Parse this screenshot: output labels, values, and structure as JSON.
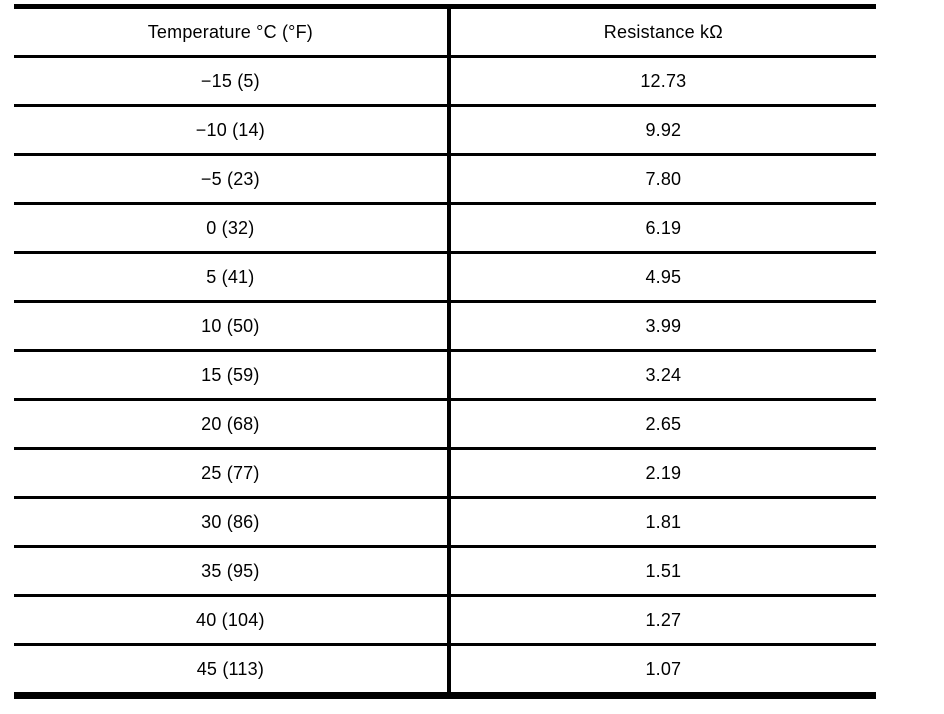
{
  "table": {
    "headers": [
      "Temperature °C (°F)",
      "Resistance kΩ"
    ],
    "rows": [
      [
        "−15 (5)",
        "12.73"
      ],
      [
        "−10 (14)",
        "9.92"
      ],
      [
        "−5 (23)",
        "7.80"
      ],
      [
        "0 (32)",
        "6.19"
      ],
      [
        "5 (41)",
        "4.95"
      ],
      [
        "10 (50)",
        "3.99"
      ],
      [
        "15 (59)",
        "3.24"
      ],
      [
        "20 (68)",
        "2.65"
      ],
      [
        "25 (77)",
        "2.19"
      ],
      [
        "30 (86)",
        "1.81"
      ],
      [
        "35 (95)",
        "1.51"
      ],
      [
        "40 (104)",
        "1.27"
      ],
      [
        "45 (113)",
        "1.07"
      ]
    ],
    "colors": {
      "border": "#000000",
      "text": "#000000",
      "background": "#ffffff"
    }
  },
  "chart_data": {
    "type": "table",
    "title": "",
    "columns": [
      "Temperature °C (°F)",
      "Resistance kΩ"
    ],
    "temperature_c": [
      -15,
      -10,
      -5,
      0,
      5,
      10,
      15,
      20,
      25,
      30,
      35,
      40,
      45
    ],
    "temperature_f": [
      5,
      14,
      23,
      32,
      41,
      50,
      59,
      68,
      77,
      86,
      95,
      104,
      113
    ],
    "resistance_kohm": [
      12.73,
      9.92,
      7.8,
      6.19,
      4.95,
      3.99,
      3.24,
      2.65,
      2.19,
      1.81,
      1.51,
      1.27,
      1.07
    ]
  }
}
